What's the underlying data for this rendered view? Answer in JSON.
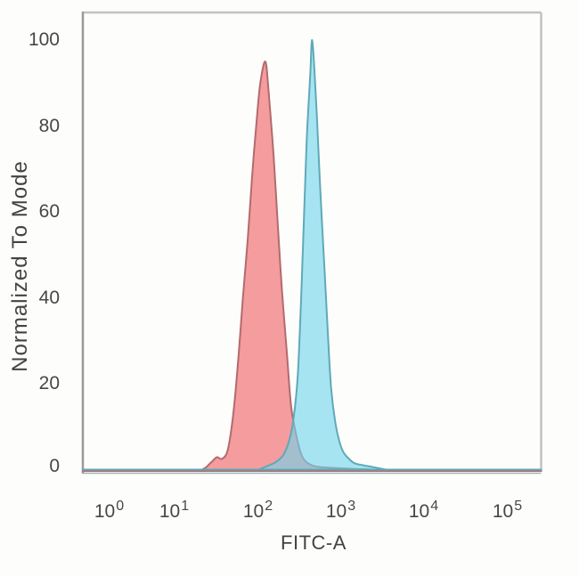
{
  "figure": {
    "background_color": "#fdfdfb",
    "frame": {
      "left_axis_color": "#9a9a9a",
      "top_right_border_color": "#c2c2c2",
      "bottom_border_color": "#9fb4b8"
    }
  },
  "axes": {
    "y": {
      "label": "Normalized To Mode",
      "ticks": [
        "100",
        "80",
        "60",
        "40",
        "20",
        "0"
      ]
    },
    "x": {
      "label": "FITC-A",
      "tick_base": "10",
      "tick_exponents": [
        "0",
        "1",
        "2",
        "3",
        "4",
        "5"
      ]
    }
  },
  "chart_data": {
    "type": "area",
    "subtype": "flow-cytometry-overlaid-histograms",
    "title": "",
    "xlabel": "FITC-A",
    "ylabel": "Normalized To Mode",
    "x_scale": "log10",
    "xlim_log10": [
      0,
      5.4
    ],
    "ylim": [
      0,
      100
    ],
    "x_ticks": [
      "10^0",
      "10^1",
      "10^2",
      "10^3",
      "10^4",
      "10^5"
    ],
    "y_ticks": [
      100,
      80,
      60,
      40,
      20,
      0
    ],
    "grid": false,
    "legend": null,
    "series": [
      {
        "name": "red-peak",
        "peak": {
          "x_log10": 2.1,
          "y": 95
        },
        "fill": "rgba(238,92,97,0.60)",
        "stroke": "#b26b6e",
        "points_xlog_y": [
          [
            1.3,
            0
          ],
          [
            1.38,
            0.7
          ],
          [
            1.45,
            2
          ],
          [
            1.52,
            3.2
          ],
          [
            1.58,
            2.8
          ],
          [
            1.65,
            5
          ],
          [
            1.72,
            14
          ],
          [
            1.78,
            27
          ],
          [
            1.83,
            40
          ],
          [
            1.89,
            54
          ],
          [
            1.94,
            68
          ],
          [
            1.99,
            80
          ],
          [
            2.04,
            90
          ],
          [
            2.1,
            95
          ],
          [
            2.14,
            88
          ],
          [
            2.2,
            73
          ],
          [
            2.25,
            57
          ],
          [
            2.3,
            42
          ],
          [
            2.36,
            27
          ],
          [
            2.41,
            15
          ],
          [
            2.47,
            8.5
          ],
          [
            2.52,
            4.5
          ],
          [
            2.57,
            2.5
          ],
          [
            2.66,
            1.3
          ],
          [
            2.76,
            0.9
          ],
          [
            2.93,
            0.7
          ],
          [
            3.14,
            0.5
          ],
          [
            3.41,
            0.3
          ],
          [
            3.55,
            0
          ]
        ]
      },
      {
        "name": "cyan-peak",
        "peak": {
          "x_log10": 2.66,
          "y": 100
        },
        "fill": "rgba(113,213,235,0.62)",
        "stroke": "#5fa9b8",
        "points_xlog_y": [
          [
            2.02,
            0
          ],
          [
            2.12,
            0.8
          ],
          [
            2.23,
            1.8
          ],
          [
            2.32,
            3.5
          ],
          [
            2.39,
            7
          ],
          [
            2.44,
            12
          ],
          [
            2.49,
            22
          ],
          [
            2.53,
            40
          ],
          [
            2.57,
            62
          ],
          [
            2.6,
            78
          ],
          [
            2.64,
            92
          ],
          [
            2.66,
            100
          ],
          [
            2.69,
            93
          ],
          [
            2.72,
            82
          ],
          [
            2.76,
            65
          ],
          [
            2.81,
            47
          ],
          [
            2.85,
            32
          ],
          [
            2.89,
            19
          ],
          [
            2.94,
            11
          ],
          [
            2.99,
            6.5
          ],
          [
            3.04,
            4
          ],
          [
            3.11,
            2.4
          ],
          [
            3.17,
            1.5
          ],
          [
            3.28,
            1
          ],
          [
            3.39,
            0.6
          ],
          [
            3.47,
            0.3
          ],
          [
            3.55,
            0
          ]
        ]
      }
    ]
  }
}
